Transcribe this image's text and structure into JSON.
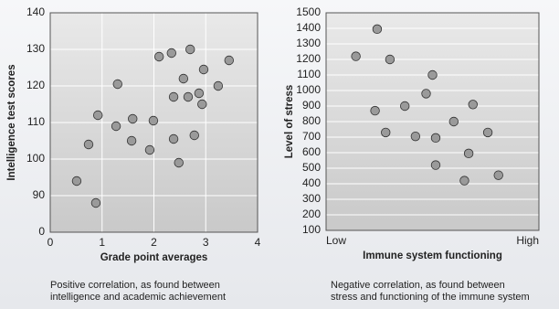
{
  "chart_data": [
    {
      "type": "scatter",
      "xlabel": "Grade point averages",
      "ylabel": "Intelligence test scores",
      "caption": [
        "Positive correlation, as found between",
        "intelligence and academic achievement"
      ],
      "xlim": [
        0,
        4
      ],
      "xticks": [
        0,
        1,
        2,
        3,
        4
      ],
      "ylim": [
        80,
        140
      ],
      "yticks": [
        {
          "value": 80,
          "label": "0"
        },
        90,
        100,
        110,
        120,
        130,
        140
      ],
      "grid": true,
      "color": "#9a9a9a",
      "x": [
        0.51,
        0.74,
        0.88,
        0.92,
        1.27,
        1.3,
        1.59,
        1.57,
        1.92,
        1.99,
        2.1,
        2.34,
        2.38,
        2.38,
        2.48,
        2.57,
        2.66,
        2.7,
        2.78,
        2.87,
        2.93,
        2.96,
        3.24,
        3.45
      ],
      "y": [
        94,
        104,
        88,
        112,
        109,
        120.5,
        111,
        105,
        102.5,
        110.5,
        128,
        129,
        117,
        105.5,
        99,
        122,
        117,
        130,
        106.5,
        118,
        115,
        124.5,
        120,
        127
      ]
    },
    {
      "type": "scatter",
      "xlabel": "Immune system functioning",
      "ylabel": "Level of stress",
      "caption": [
        "Negative correlation, as found between",
        "stress and functioning of the immune system"
      ],
      "xlim": [
        0,
        10
      ],
      "xticks": [
        {
          "value": 0,
          "label": "Low"
        },
        {
          "value": 10,
          "label": "High"
        }
      ],
      "ylim": [
        100,
        1500
      ],
      "yticks": [
        100,
        200,
        300,
        400,
        500,
        600,
        700,
        800,
        900,
        1000,
        1100,
        1200,
        1300,
        1400,
        1500
      ],
      "grid": true,
      "color": "#9a9a9a",
      "x": [
        1.4,
        2.4,
        2.3,
        2.8,
        3.0,
        3.7,
        4.2,
        4.7,
        5.0,
        5.15,
        5.15,
        6.0,
        6.5,
        6.7,
        6.9,
        7.6,
        8.1
      ],
      "y": [
        1220,
        1395,
        870,
        730,
        1200,
        900,
        705,
        980,
        1100,
        695,
        520,
        800,
        420,
        595,
        910,
        730,
        455
      ]
    }
  ]
}
